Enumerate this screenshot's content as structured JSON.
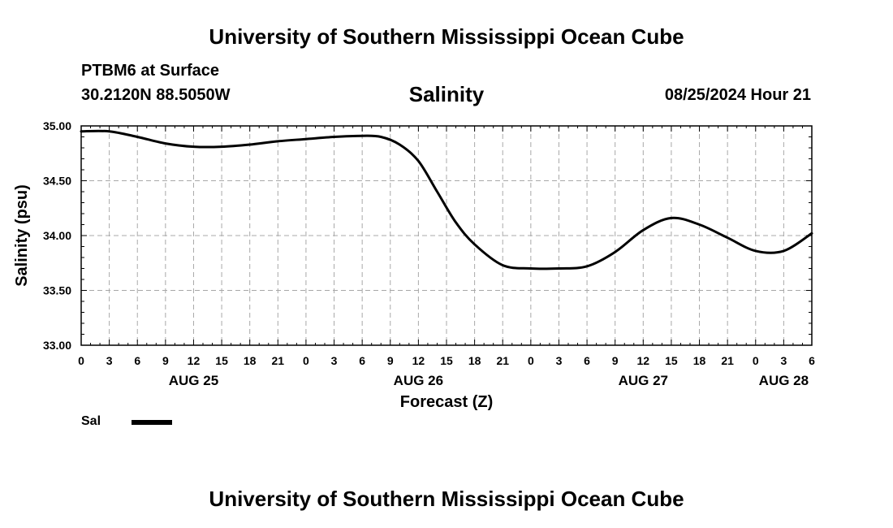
{
  "header": {
    "top_title": "University of Southern Mississippi Ocean Cube",
    "station": "PTBM6 at Surface",
    "coords": "30.2120N  88.5050W",
    "datetime": "08/25/2024 Hour 21",
    "bottom_title": "University of Southern Mississippi Ocean Cube"
  },
  "legend": {
    "label": "Sal",
    "color": "#000000"
  },
  "chart_data": {
    "type": "line",
    "title": "Salinity",
    "xlabel": "Forecast (Z)",
    "ylabel": "Salinity (psu)",
    "ylim": [
      33.0,
      35.0
    ],
    "xlim_hours": [
      0,
      78
    ],
    "y_ticks": [
      "33.00",
      "33.50",
      "34.00",
      "34.50",
      "35.00"
    ],
    "x_tick_labels": [
      "0",
      "3",
      "6",
      "9",
      "12",
      "15",
      "18",
      "21",
      "0",
      "3",
      "6",
      "9",
      "12",
      "15",
      "18",
      "21",
      "0",
      "3",
      "6",
      "9",
      "12",
      "15",
      "18",
      "21",
      "0",
      "3",
      "6"
    ],
    "day_labels": [
      {
        "label": "AUG 25",
        "hour": 12
      },
      {
        "label": "AUG 26",
        "hour": 36
      },
      {
        "label": "AUG 27",
        "hour": 60
      },
      {
        "label": "AUG 28",
        "hour": 75
      }
    ],
    "grid": true,
    "series": [
      {
        "name": "Sal",
        "x": [
          0,
          3,
          6,
          9,
          12,
          15,
          18,
          21,
          24,
          27,
          30,
          32,
          34,
          36,
          38,
          40,
          42,
          45,
          48,
          51,
          54,
          57,
          60,
          63,
          66,
          69,
          72,
          75,
          78
        ],
        "values": [
          34.95,
          34.95,
          34.9,
          34.84,
          34.81,
          34.81,
          34.83,
          34.86,
          34.88,
          34.9,
          34.91,
          34.9,
          34.83,
          34.68,
          34.4,
          34.12,
          33.92,
          33.73,
          33.7,
          33.7,
          33.72,
          33.85,
          34.05,
          34.16,
          34.1,
          33.98,
          33.86,
          33.86,
          34.02
        ]
      }
    ]
  }
}
